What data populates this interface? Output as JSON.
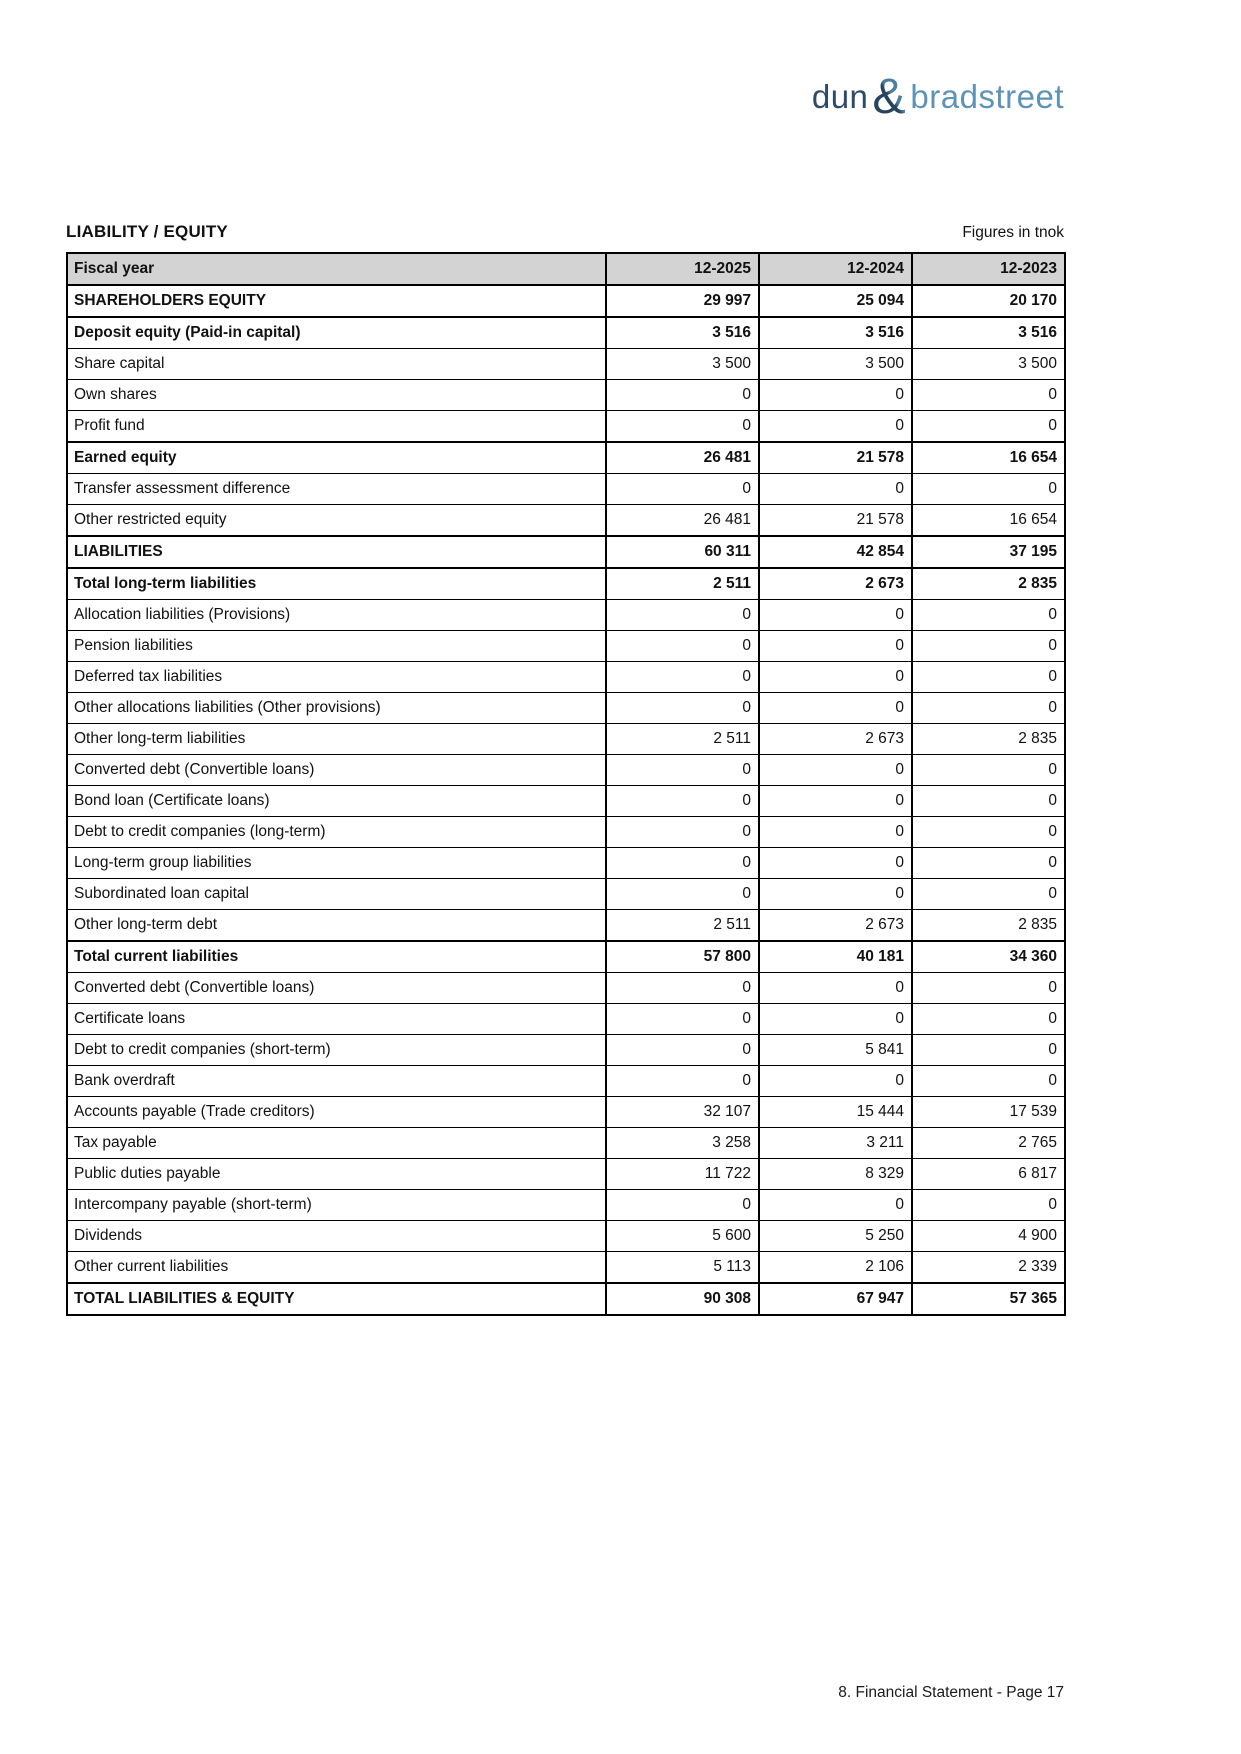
{
  "logo": {
    "dun": "dun",
    "ampersand": "&",
    "bradstreet": "bradstreet",
    "colors": {
      "navy": "#2d4b68",
      "light_blue": "#5e93b8",
      "ampersand_top": "#4a7f9e",
      "ampersand_bottom": "#27445f"
    }
  },
  "header": {
    "title": "LIABILITY / EQUITY",
    "units_note": "Figures in tnok"
  },
  "table": {
    "header_gray": "#d3d3d3",
    "columns": [
      "Fiscal year",
      "12-2025",
      "12-2024",
      "12-2023"
    ],
    "rows": [
      {
        "label": "SHAREHOLDERS EQUITY",
        "values": [
          "29 997",
          "25 094",
          "20 170"
        ],
        "bold": true
      },
      {
        "label": "Deposit equity (Paid-in capital)",
        "values": [
          "3 516",
          "3 516",
          "3 516"
        ],
        "bold": true
      },
      {
        "label": "Share capital",
        "values": [
          "3 500",
          "3 500",
          "3 500"
        ],
        "bold": false
      },
      {
        "label": "Own shares",
        "values": [
          "0",
          "0",
          "0"
        ],
        "bold": false
      },
      {
        "label": "Profit fund",
        "values": [
          "0",
          "0",
          "0"
        ],
        "bold": false
      },
      {
        "label": "Earned equity",
        "values": [
          "26 481",
          "21 578",
          "16 654"
        ],
        "bold": true
      },
      {
        "label": "Transfer assessment difference",
        "values": [
          "0",
          "0",
          "0"
        ],
        "bold": false
      },
      {
        "label": "Other restricted equity",
        "values": [
          "26 481",
          "21 578",
          "16 654"
        ],
        "bold": false
      },
      {
        "label": "LIABILITIES",
        "values": [
          "60 311",
          "42 854",
          "37 195"
        ],
        "bold": true
      },
      {
        "label": "Total long-term liabilities",
        "values": [
          "2 511",
          "2 673",
          "2 835"
        ],
        "bold": true
      },
      {
        "label": "Allocation liabilities (Provisions)",
        "values": [
          "0",
          "0",
          "0"
        ],
        "bold": false
      },
      {
        "label": "Pension liabilities",
        "values": [
          "0",
          "0",
          "0"
        ],
        "bold": false
      },
      {
        "label": "Deferred tax liabilities",
        "values": [
          "0",
          "0",
          "0"
        ],
        "bold": false
      },
      {
        "label": "Other allocations liabilities (Other provisions)",
        "values": [
          "0",
          "0",
          "0"
        ],
        "bold": false
      },
      {
        "label": "Other long-term liabilities",
        "values": [
          "2 511",
          "2 673",
          "2 835"
        ],
        "bold": false
      },
      {
        "label": "Converted debt (Convertible loans)",
        "values": [
          "0",
          "0",
          "0"
        ],
        "bold": false
      },
      {
        "label": "Bond loan (Certificate loans)",
        "values": [
          "0",
          "0",
          "0"
        ],
        "bold": false
      },
      {
        "label": "Debt to credit companies (long-term)",
        "values": [
          "0",
          "0",
          "0"
        ],
        "bold": false
      },
      {
        "label": "Long-term group liabilities",
        "values": [
          "0",
          "0",
          "0"
        ],
        "bold": false
      },
      {
        "label": "Subordinated loan capital",
        "values": [
          "0",
          "0",
          "0"
        ],
        "bold": false
      },
      {
        "label": "Other long-term debt",
        "values": [
          "2 511",
          "2 673",
          "2 835"
        ],
        "bold": false
      },
      {
        "label": "Total current liabilities",
        "values": [
          "57 800",
          "40 181",
          "34 360"
        ],
        "bold": true
      },
      {
        "label": "Converted debt (Convertible loans)",
        "values": [
          "0",
          "0",
          "0"
        ],
        "bold": false
      },
      {
        "label": "Certificate loans",
        "values": [
          "0",
          "0",
          "0"
        ],
        "bold": false
      },
      {
        "label": "Debt to credit companies (short-term)",
        "values": [
          "0",
          "5 841",
          "0"
        ],
        "bold": false
      },
      {
        "label": "Bank overdraft",
        "values": [
          "0",
          "0",
          "0"
        ],
        "bold": false
      },
      {
        "label": "Accounts payable (Trade creditors)",
        "values": [
          "32 107",
          "15 444",
          "17 539"
        ],
        "bold": false
      },
      {
        "label": "Tax payable",
        "values": [
          "3 258",
          "3 211",
          "2 765"
        ],
        "bold": false
      },
      {
        "label": "Public duties payable",
        "values": [
          "11 722",
          "8 329",
          "6 817"
        ],
        "bold": false
      },
      {
        "label": "Intercompany payable (short-term)",
        "values": [
          "0",
          "0",
          "0"
        ],
        "bold": false
      },
      {
        "label": "Dividends",
        "values": [
          "5 600",
          "5 250",
          "4 900"
        ],
        "bold": false
      },
      {
        "label": "Other current liabilities",
        "values": [
          "5 113",
          "2 106",
          "2 339"
        ],
        "bold": false
      },
      {
        "label": "TOTAL LIABILITIES & EQUITY",
        "values": [
          "90 308",
          "67 947",
          "57 365"
        ],
        "bold": true
      }
    ]
  },
  "footer": {
    "text": "8. Financial Statement - Page 17"
  }
}
